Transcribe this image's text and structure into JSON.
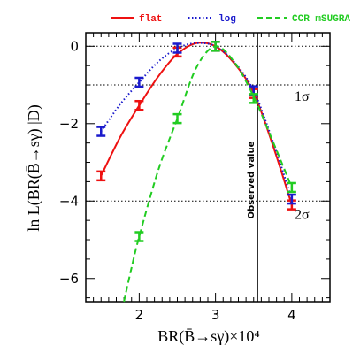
{
  "chart_data": {
    "type": "line",
    "xlabel": "BR(B̄→sγ)×10⁴",
    "ylabel": "ln L(BR(B̄→sγ) |D)",
    "xlim": [
      1.3,
      4.5
    ],
    "ylim": [
      -6.6,
      0.35
    ],
    "xticks": [
      2,
      3,
      4
    ],
    "yticks": [
      0,
      -2,
      -4,
      -6
    ],
    "xtick_labels": [
      "2",
      "3",
      "4"
    ],
    "ytick_labels": [
      "0",
      "−2",
      "−4",
      "−6"
    ],
    "reference_lines": [
      0,
      -1,
      -4
    ],
    "reference_labels": [
      {
        "y": -1,
        "text": "1σ"
      },
      {
        "y": -4,
        "text": "2σ"
      }
    ],
    "observed_value": {
      "x": 3.55,
      "label": "Observed value"
    },
    "legend_position": "top",
    "series": [
      {
        "name": "flat",
        "color": "#ee1111",
        "dash": "solid",
        "x": [
          1.5,
          2.0,
          2.5,
          3.0,
          3.5,
          4.0
        ],
        "y": [
          -3.35,
          -1.53,
          -0.15,
          0.0,
          -1.22,
          -4.1
        ],
        "curve_x": [
          1.5,
          1.75,
          2.0,
          2.25,
          2.5,
          2.75,
          3.0,
          3.25,
          3.5,
          3.75,
          4.0
        ],
        "curve_y": [
          -3.35,
          -2.35,
          -1.53,
          -0.78,
          -0.2,
          0.08,
          0.0,
          -0.45,
          -1.2,
          -2.55,
          -4.1
        ]
      },
      {
        "name": "log",
        "color": "#1a1acc",
        "dash": "dotted",
        "x": [
          1.5,
          2.0,
          2.5,
          3.0,
          3.5,
          4.0
        ],
        "y": [
          -2.2,
          -0.93,
          -0.05,
          0.0,
          -1.15,
          -3.95
        ],
        "curve_x": [
          1.5,
          1.75,
          2.0,
          2.25,
          2.5,
          2.75,
          3.0,
          3.25,
          3.5,
          3.75,
          4.0
        ],
        "curve_y": [
          -2.2,
          -1.5,
          -0.93,
          -0.4,
          -0.05,
          0.08,
          0.0,
          -0.42,
          -1.15,
          -2.45,
          -3.95
        ]
      },
      {
        "name": "CCR mSUGRA",
        "color": "#22cc22",
        "dash": "dashed",
        "x": [
          2.0,
          2.5,
          3.0,
          3.5,
          4.0
        ],
        "y": [
          -4.92,
          -1.87,
          0.0,
          -1.35,
          -3.65
        ],
        "curve_x": [
          1.8,
          1.9,
          2.0,
          2.25,
          2.5,
          2.75,
          3.0,
          3.25,
          3.5,
          3.75,
          4.0
        ],
        "curve_y": [
          -6.6,
          -5.72,
          -4.92,
          -3.2,
          -1.87,
          -0.55,
          0.0,
          -0.42,
          -1.3,
          -2.45,
          -3.65
        ]
      }
    ]
  }
}
